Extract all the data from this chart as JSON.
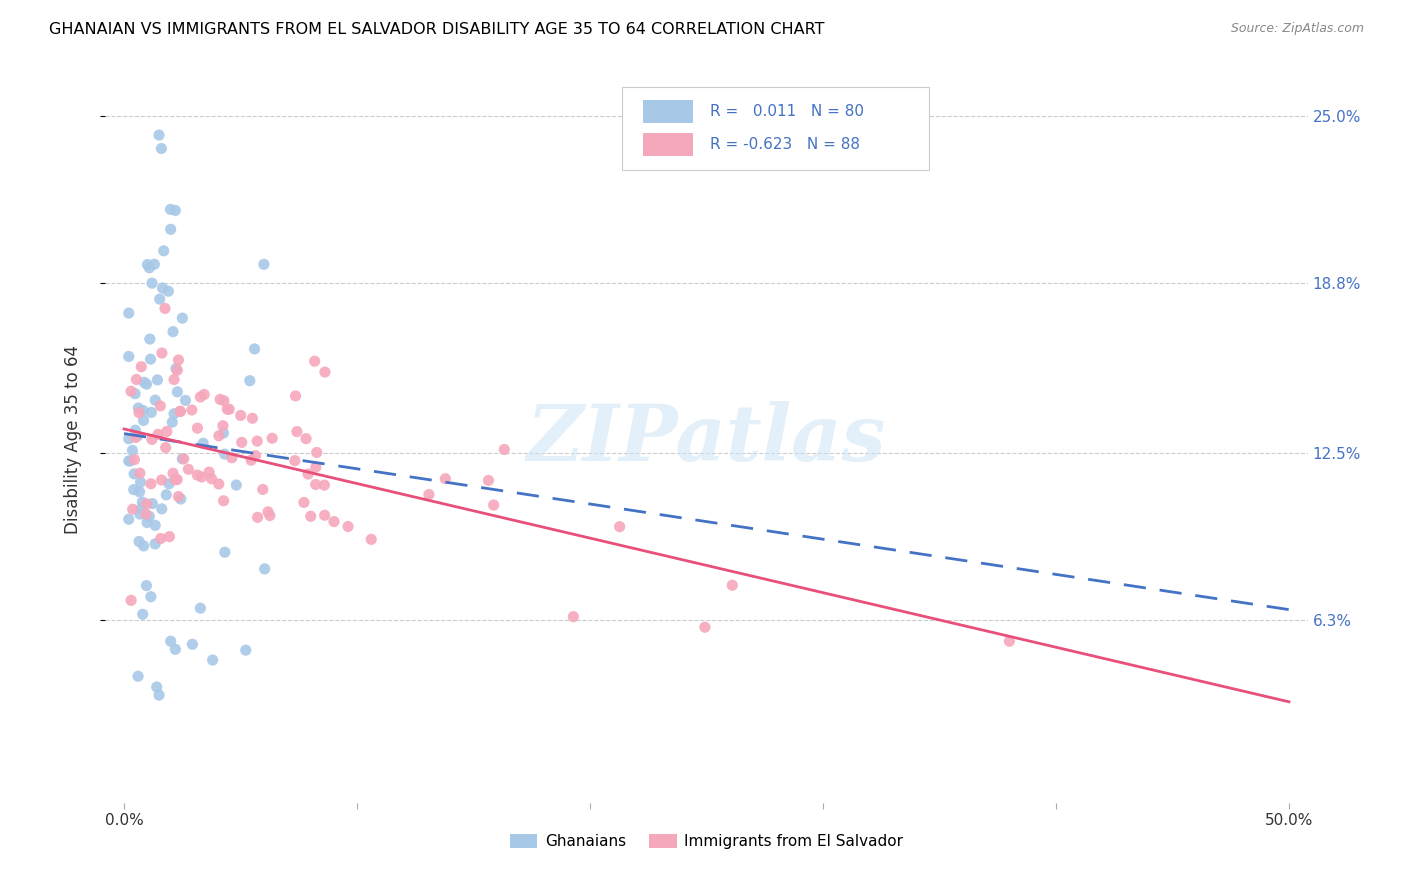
{
  "title": "GHANAIAN VS IMMIGRANTS FROM EL SALVADOR DISABILITY AGE 35 TO 64 CORRELATION CHART",
  "source": "Source: ZipAtlas.com",
  "ylabel_label": "Disability Age 35 to 64",
  "legend_labels": [
    "Ghanaians",
    "Immigrants from El Salvador"
  ],
  "r_ghanaian": "0.011",
  "n_ghanaian": "80",
  "r_salvador": "-0.623",
  "n_salvador": "88",
  "color_ghanaian": "#a8c8e8",
  "color_salvador": "#f5a8bc",
  "color_line_ghanaian": "#4472c4",
  "color_line_salvador": "#e8507a",
  "color_text_blue": "#4472c4",
  "watermark": "ZIPatlas",
  "xmin": 0.0,
  "xmax": 0.5,
  "ytick_vals": [
    0.063,
    0.125,
    0.188,
    0.25
  ],
  "ytick_labels": [
    "6.3%",
    "12.5%",
    "18.8%",
    "25.0%"
  ],
  "xtick_vals": [
    0.0,
    0.5
  ],
  "xtick_labels": [
    "0.0%",
    "50.0%"
  ]
}
